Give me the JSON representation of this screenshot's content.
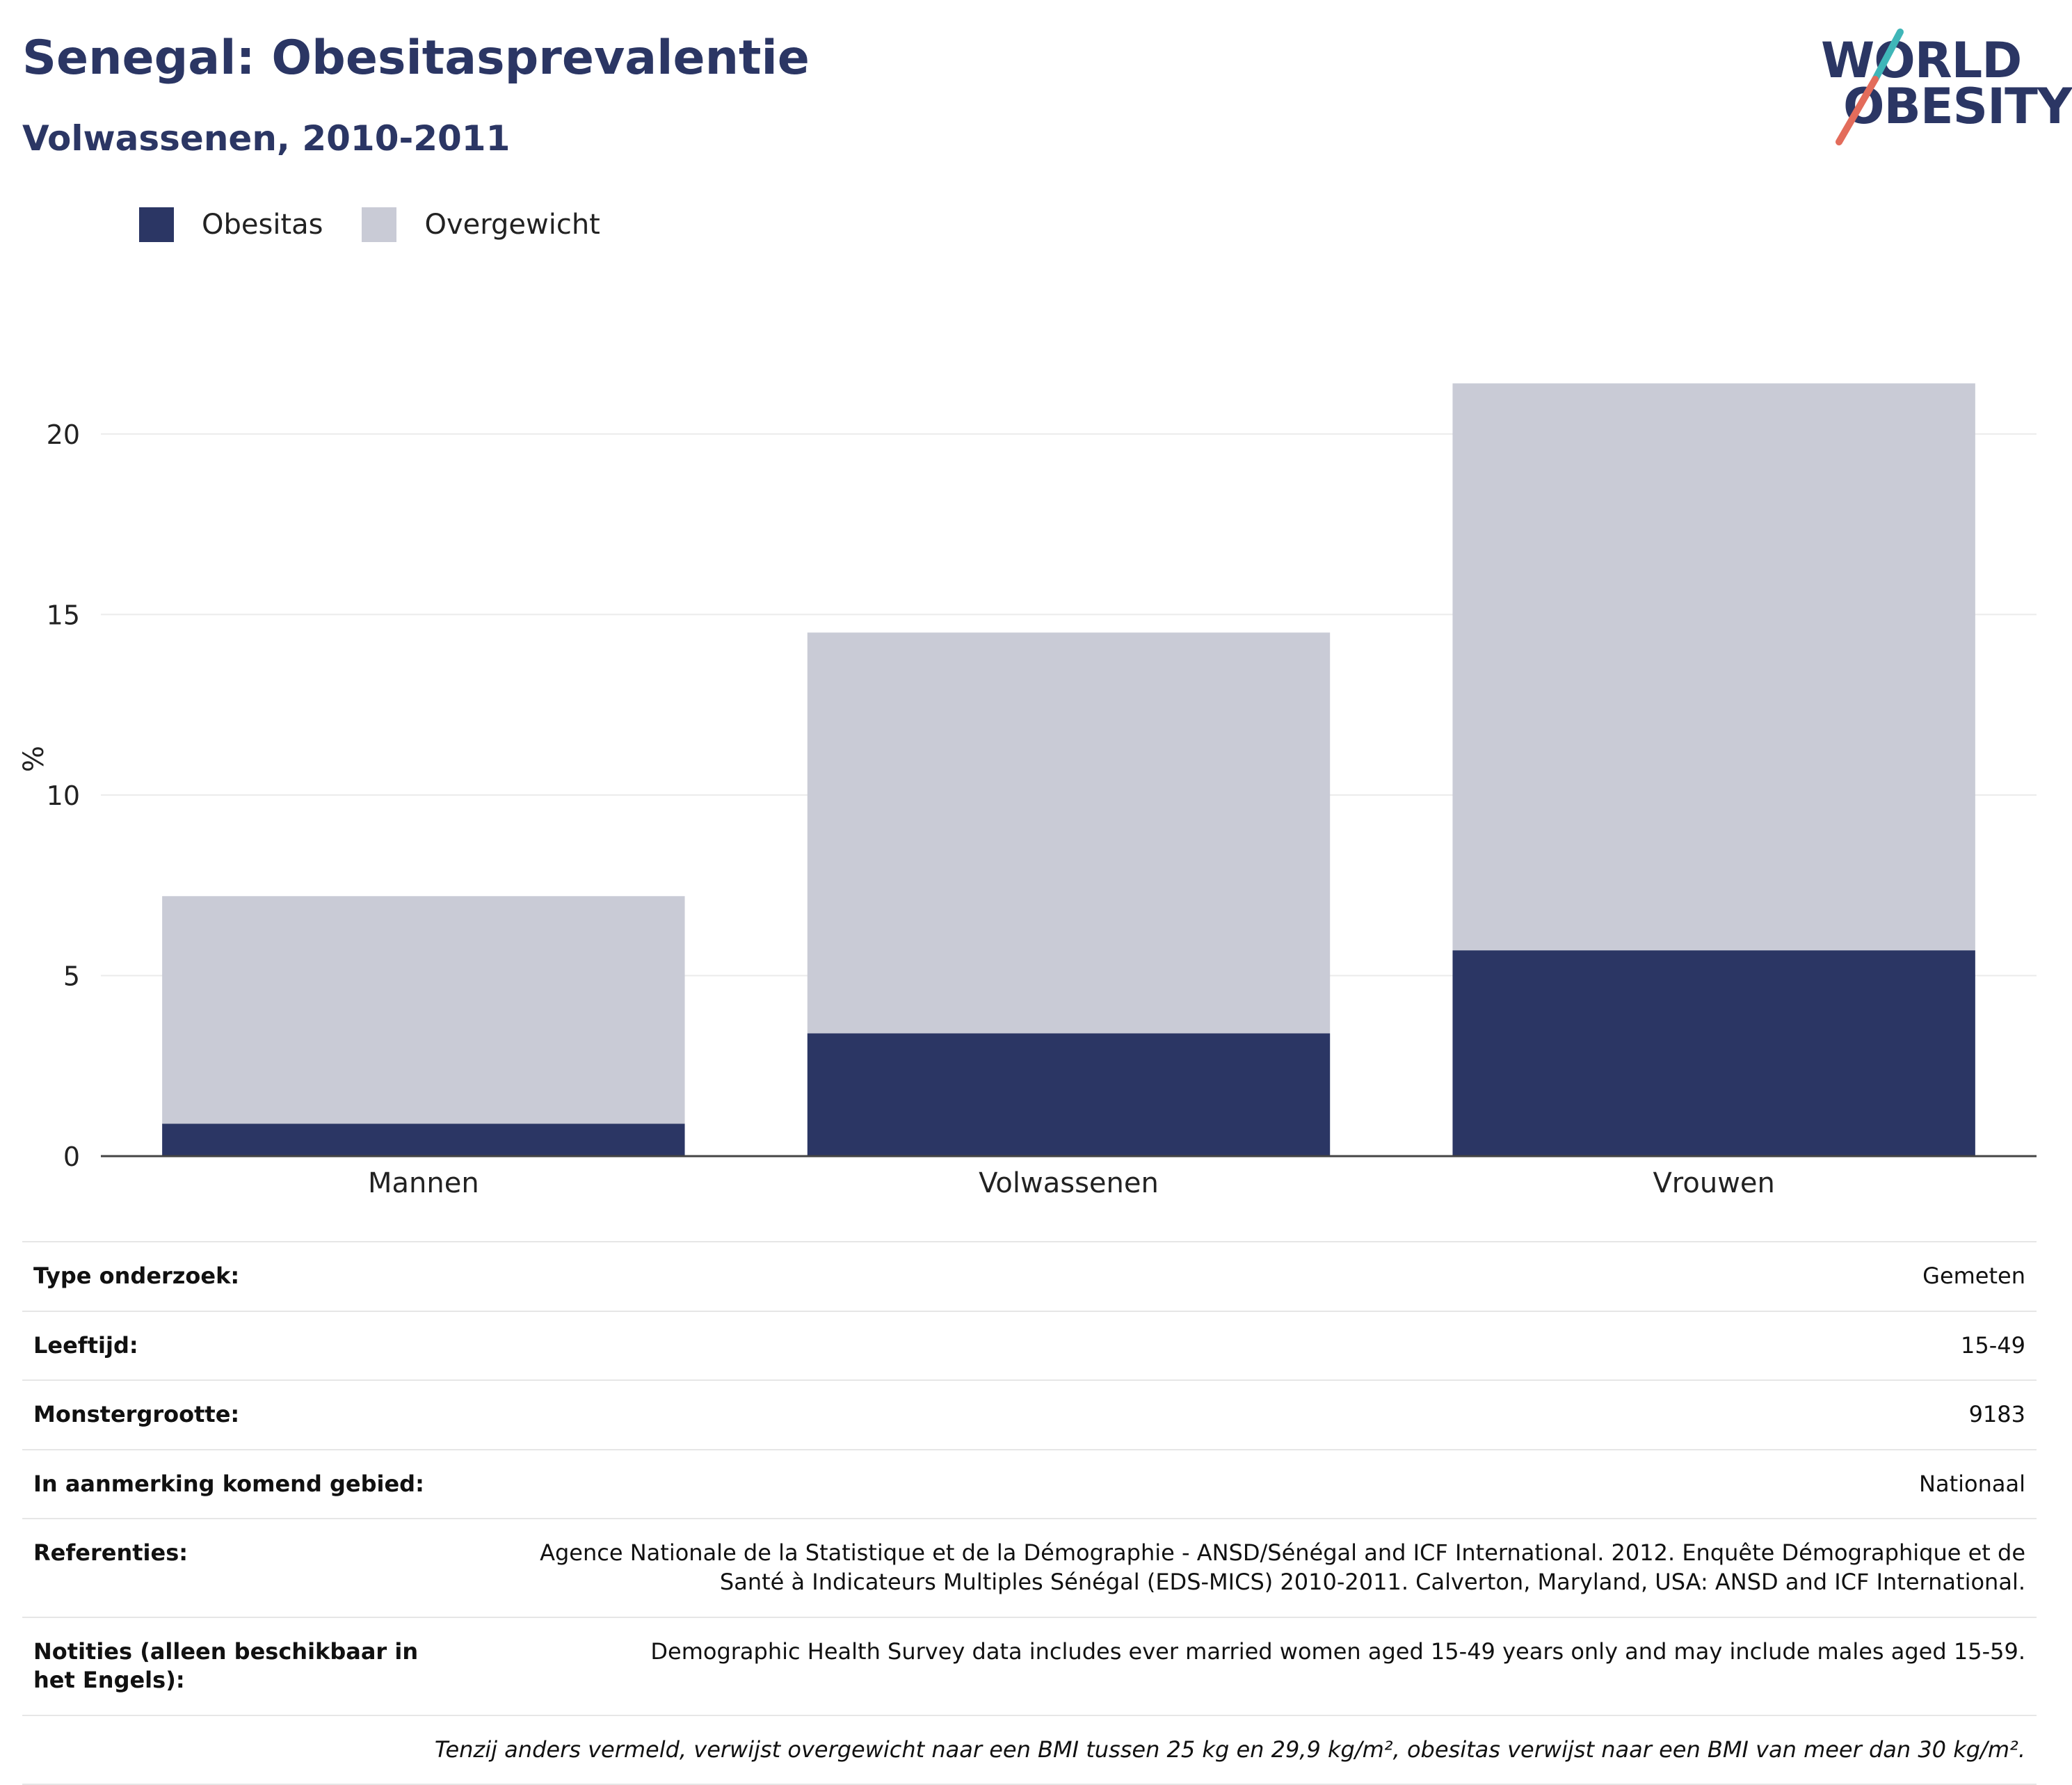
{
  "header": {
    "title": "Senegal: Obesitasprevalentie",
    "subtitle": "Volwassenen, 2010-2011"
  },
  "logo": {
    "line1": "WORLD",
    "line2": "OBESITY",
    "colors": {
      "text": "#2b3664",
      "slash_top": "#3fb6b8",
      "slash_bottom": "#e36c5b"
    }
  },
  "legend": [
    {
      "label": "Obesitas",
      "color": "#2b3664"
    },
    {
      "label": "Overgewicht",
      "color": "#c9cbd6"
    }
  ],
  "chart_data": {
    "type": "bar",
    "stacked": true,
    "categories": [
      "Mannen",
      "Volwassenen",
      "Vrouwen"
    ],
    "series": [
      {
        "name": "Obesitas",
        "values": [
          0.9,
          3.4,
          5.7
        ],
        "color": "#2b3664"
      },
      {
        "name": "Overgewicht",
        "values": [
          6.3,
          11.1,
          15.7
        ],
        "color": "#c9cbd6"
      }
    ],
    "ylabel": "%",
    "ylim": [
      0,
      22
    ],
    "yticks": [
      0,
      5,
      10,
      15,
      20
    ],
    "grid": true,
    "legend_position": "top-left"
  },
  "info": [
    {
      "label": "Type onderzoek:",
      "value": "Gemeten"
    },
    {
      "label": "Leeftijd:",
      "value": "15-49"
    },
    {
      "label": "Monstergrootte:",
      "value": "9183"
    },
    {
      "label": "In aanmerking komend gebied:",
      "value": "Nationaal"
    },
    {
      "label": "Referenties:",
      "value": "Agence Nationale de la Statistique et de la Démographie - ANSD/Sénégal and ICF International. 2012. Enquête Démographique et de Santé à Indicateurs Multiples Sénégal (EDS-MICS) 2010-2011. Calverton, Maryland, USA: ANSD and ICF International."
    },
    {
      "label": "Notities (alleen beschikbaar in het Engels):",
      "value": "Demographic Health Survey data includes ever married women aged 15-49 years only and may include males aged 15-59."
    }
  ],
  "footnote": "Tenzij anders vermeld, verwijst overgewicht naar een BMI tussen 25 kg en 29,9 kg/m², obesitas verwijst naar een BMI van meer dan 30 kg/m²."
}
